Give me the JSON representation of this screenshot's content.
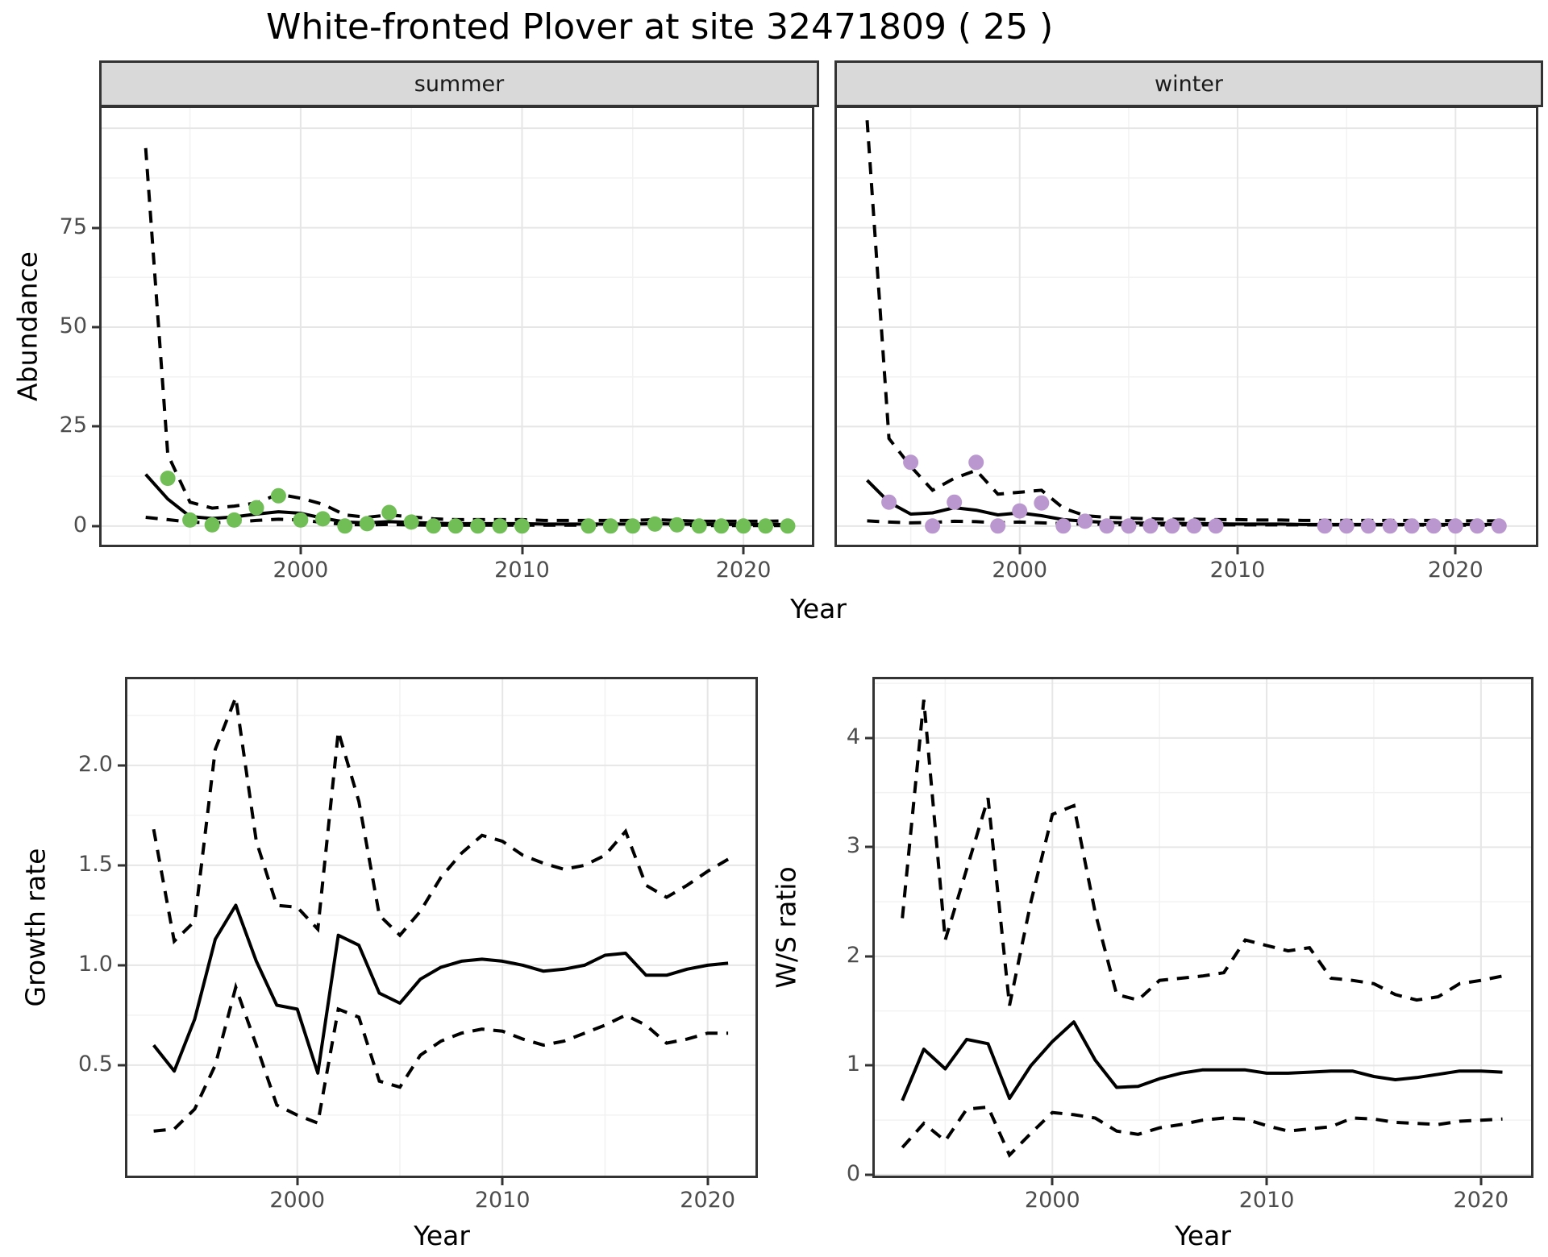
{
  "title": "White-fronted Plover at site 32471809 ( 25 )",
  "colors": {
    "summer_point": "#70BE55",
    "winter_point": "#BA98CF",
    "line": "#000000",
    "strip_bg": "#D9D9D9",
    "panel_border": "#333333",
    "grid_major": "#E6E6E6",
    "grid_minor": "#F2F2F2",
    "tick_label": "#4D4D4D"
  },
  "chart_data": [
    {
      "id": "abundance_summer",
      "type": "line",
      "facet": "summer",
      "ylabel": "Abundance",
      "xlabel": "Year",
      "xticks": [
        2000,
        2010,
        2020
      ],
      "xtick_labels": [
        "2000",
        "2010",
        "2020"
      ],
      "yticks": [
        0,
        25,
        50,
        75
      ],
      "ytick_labels": [
        "0",
        "25",
        "50",
        "75"
      ],
      "xlim": [
        1990.9,
        2023.2
      ],
      "ylim": [
        -5.3,
        105.7
      ],
      "x": [
        1993,
        1994,
        1995,
        1996,
        1997,
        1998,
        1999,
        2000,
        2001,
        2002,
        2003,
        2004,
        2005,
        2006,
        2007,
        2008,
        2009,
        2010,
        2011,
        2012,
        2013,
        2014,
        2015,
        2016,
        2017,
        2018,
        2019,
        2020,
        2021,
        2022
      ],
      "fit": [
        13.0,
        6.8,
        2.4,
        1.9,
        2.3,
        3.0,
        3.6,
        3.2,
        2.0,
        1.0,
        0.8,
        1.1,
        0.9,
        0.7,
        0.6,
        0.6,
        0.6,
        0.6,
        0.5,
        0.5,
        0.5,
        0.5,
        0.5,
        0.6,
        0.5,
        0.4,
        0.4,
        0.4,
        0.4,
        0.4
      ],
      "upper": [
        95,
        18,
        6.0,
        4.5,
        5.0,
        5.8,
        8.0,
        7.0,
        5.5,
        2.8,
        2.2,
        2.8,
        2.3,
        1.8,
        1.6,
        1.6,
        1.6,
        1.6,
        1.4,
        1.4,
        1.4,
        1.4,
        1.4,
        1.6,
        1.4,
        1.2,
        1.2,
        1.2,
        1.2,
        1.3
      ],
      "lower": [
        2.2,
        1.6,
        1.0,
        0.8,
        1.0,
        1.4,
        1.7,
        1.5,
        0.9,
        0.4,
        0.3,
        0.4,
        0.3,
        0.2,
        0.2,
        0.2,
        0.2,
        0.2,
        0.2,
        0.2,
        0.2,
        0.2,
        0.2,
        0.2,
        0.2,
        0.1,
        0.1,
        0.1,
        0.1,
        0.1
      ],
      "points_x": [
        1994,
        1995,
        1996,
        1997,
        1998,
        1999,
        2000,
        2001,
        2002,
        2003,
        2004,
        2005,
        2006,
        2007,
        2008,
        2009,
        2010,
        2013,
        2014,
        2015,
        2016,
        2017,
        2018,
        2019,
        2020,
        2021,
        2022
      ],
      "points_y": [
        12,
        1.5,
        0.3,
        1.5,
        4.6,
        7.6,
        1.5,
        1.8,
        0,
        0.6,
        3.4,
        1.0,
        0,
        0,
        0,
        0,
        0,
        0,
        0,
        0,
        0.5,
        0.3,
        0,
        0,
        0,
        0,
        0
      ]
    },
    {
      "id": "abundance_winter",
      "type": "line",
      "facet": "winter",
      "ylabel": "Abundance",
      "xlabel": "Year",
      "xticks": [
        2000,
        2010,
        2020
      ],
      "xtick_labels": [
        "2000",
        "2010",
        "2020"
      ],
      "yticks": [
        0,
        25,
        50,
        75
      ],
      "ytick_labels": [
        "0",
        "25",
        "50",
        "75"
      ],
      "xlim": [
        1991.5,
        2023.8
      ],
      "ylim": [
        -5.3,
        105.7
      ],
      "x": [
        1993,
        1994,
        1995,
        1996,
        1997,
        1998,
        1999,
        2000,
        2001,
        2002,
        2003,
        2004,
        2005,
        2006,
        2007,
        2008,
        2009,
        2010,
        2011,
        2012,
        2013,
        2014,
        2015,
        2016,
        2017,
        2018,
        2019,
        2020,
        2021,
        2022
      ],
      "fit": [
        11.5,
        6.0,
        3.0,
        3.3,
        4.6,
        4.0,
        2.8,
        3.3,
        2.6,
        1.6,
        1.2,
        0.9,
        0.8,
        0.7,
        0.7,
        0.6,
        0.6,
        0.5,
        0.5,
        0.5,
        0.4,
        0.4,
        0.4,
        0.4,
        0.4,
        0.4,
        0.4,
        0.4,
        0.4,
        0.4
      ],
      "upper": [
        102,
        22,
        15,
        9,
        12,
        14,
        8,
        8.5,
        9,
        4.5,
        2.6,
        2.2,
        2.0,
        1.8,
        1.7,
        1.7,
        1.6,
        1.6,
        1.5,
        1.5,
        1.4,
        1.4,
        1.4,
        1.4,
        1.4,
        1.4,
        1.4,
        1.3,
        1.3,
        1.3
      ],
      "lower": [
        1.3,
        1.0,
        0.8,
        0.9,
        1.2,
        1.1,
        0.8,
        1.0,
        0.8,
        0.6,
        0.5,
        0.4,
        0.3,
        0.3,
        0.3,
        0.3,
        0.3,
        0.3,
        0.3,
        0.3,
        0.3,
        0.3,
        0.3,
        0.3,
        0.3,
        0.3,
        0.2,
        0.2,
        0.2,
        0.2
      ],
      "points_x": [
        1994,
        1995,
        1996,
        1997,
        1998,
        1999,
        2000,
        2001,
        2002,
        2003,
        2004,
        2005,
        2006,
        2007,
        2008,
        2009,
        2014,
        2015,
        2016,
        2017,
        2018,
        2019,
        2020,
        2021,
        2022
      ],
      "points_y": [
        6,
        16,
        0,
        6,
        16,
        0,
        3.8,
        5.8,
        0,
        1.2,
        0,
        0,
        0,
        0,
        0,
        0,
        0,
        0,
        0,
        0,
        0,
        0,
        0,
        0,
        0
      ]
    },
    {
      "id": "growth_rate",
      "type": "line",
      "facet": "",
      "ylabel": "Growth rate",
      "xlabel": "Year",
      "xticks": [
        2000,
        2010,
        2020
      ],
      "xtick_labels": [
        "2000",
        "2010",
        "2020"
      ],
      "yticks": [
        0.5,
        1.0,
        1.5,
        2.0
      ],
      "ytick_labels": [
        "0.5",
        "1.0",
        "1.5",
        "2.0"
      ],
      "xlim": [
        1991.6,
        2022.45
      ],
      "ylim": [
        -0.065,
        2.443
      ],
      "x": [
        1993,
        1994,
        1995,
        1996,
        1997,
        1998,
        1999,
        2000,
        2001,
        2002,
        2003,
        2004,
        2005,
        2006,
        2007,
        2008,
        2009,
        2010,
        2011,
        2012,
        2013,
        2014,
        2015,
        2016,
        2017,
        2018,
        2019,
        2020,
        2021
      ],
      "fit": [
        0.6,
        0.47,
        0.73,
        1.13,
        1.3,
        1.02,
        0.8,
        0.78,
        0.46,
        1.15,
        1.1,
        0.86,
        0.81,
        0.93,
        0.99,
        1.02,
        1.03,
        1.02,
        1.0,
        0.97,
        0.98,
        1.0,
        1.05,
        1.06,
        0.95,
        0.95,
        0.98,
        1.0,
        1.01
      ],
      "upper": [
        1.68,
        1.12,
        1.22,
        2.08,
        2.34,
        1.62,
        1.3,
        1.29,
        1.18,
        2.17,
        1.82,
        1.25,
        1.15,
        1.27,
        1.44,
        1.56,
        1.65,
        1.62,
        1.55,
        1.51,
        1.48,
        1.5,
        1.55,
        1.67,
        1.4,
        1.34,
        1.4,
        1.47,
        1.53
      ],
      "lower": [
        0.17,
        0.18,
        0.28,
        0.5,
        0.89,
        0.6,
        0.3,
        0.25,
        0.21,
        0.78,
        0.74,
        0.42,
        0.39,
        0.55,
        0.62,
        0.66,
        0.68,
        0.67,
        0.63,
        0.6,
        0.62,
        0.66,
        0.7,
        0.75,
        0.7,
        0.61,
        0.63,
        0.66,
        0.66
      ],
      "points_x": [],
      "points_y": []
    },
    {
      "id": "ws_ratio",
      "type": "line",
      "facet": "",
      "ylabel": "W/S ratio",
      "xlabel": "Year",
      "xticks": [
        2000,
        2010,
        2020
      ],
      "xtick_labels": [
        "2000",
        "2010",
        "2020"
      ],
      "yticks": [
        0,
        1,
        2,
        3,
        4
      ],
      "ytick_labels": [
        "0",
        "1",
        "2",
        "3",
        "4"
      ],
      "xlim": [
        1991.6,
        2022.45
      ],
      "ylim": [
        -0.03,
        4.56
      ],
      "x": [
        1993,
        1994,
        1995,
        1996,
        1997,
        1998,
        1999,
        2000,
        2001,
        2002,
        2003,
        2004,
        2005,
        2006,
        2007,
        2008,
        2009,
        2010,
        2011,
        2012,
        2013,
        2014,
        2015,
        2016,
        2017,
        2018,
        2019,
        2020,
        2021
      ],
      "fit": [
        0.68,
        1.15,
        0.97,
        1.24,
        1.2,
        0.7,
        1.0,
        1.22,
        1.4,
        1.05,
        0.8,
        0.81,
        0.88,
        0.93,
        0.96,
        0.96,
        0.96,
        0.93,
        0.93,
        0.94,
        0.95,
        0.95,
        0.9,
        0.87,
        0.89,
        0.92,
        0.95,
        0.95,
        0.94
      ],
      "upper": [
        2.35,
        4.35,
        2.15,
        2.8,
        3.45,
        1.55,
        2.5,
        3.3,
        3.38,
        2.4,
        1.65,
        1.6,
        1.78,
        1.8,
        1.82,
        1.85,
        2.15,
        2.1,
        2.05,
        2.08,
        1.8,
        1.78,
        1.75,
        1.65,
        1.6,
        1.63,
        1.75,
        1.78,
        1.82
      ],
      "lower": [
        0.25,
        0.47,
        0.31,
        0.6,
        0.62,
        0.18,
        0.38,
        0.57,
        0.55,
        0.52,
        0.4,
        0.37,
        0.43,
        0.46,
        0.5,
        0.52,
        0.51,
        0.45,
        0.4,
        0.42,
        0.44,
        0.52,
        0.51,
        0.48,
        0.47,
        0.46,
        0.49,
        0.5,
        0.51
      ],
      "points_x": [],
      "points_y": []
    }
  ]
}
